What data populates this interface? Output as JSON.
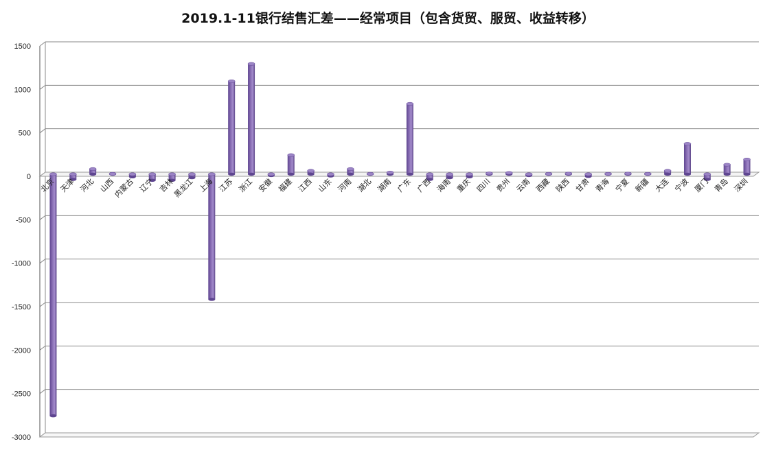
{
  "chart_data": {
    "type": "bar",
    "title": "2019.1-11银行结售汇差——经常项目（包含货贸、服贸、收益转移）",
    "xlabel": "",
    "ylabel": "",
    "ylim": [
      -3000,
      1500
    ],
    "yticks": [
      1500,
      1000,
      500,
      0,
      -500,
      -1000,
      -1500,
      -2000,
      -2500,
      -3000
    ],
    "grid": true,
    "legend": "none",
    "bar_color": "#8a6fb5",
    "categories": [
      "北京",
      "天津",
      "河北",
      "山西",
      "内蒙古",
      "辽宁",
      "吉林",
      "黑龙江",
      "上海",
      "江苏",
      "浙江",
      "安徽",
      "福建",
      "江西",
      "山东",
      "河南",
      "湖北",
      "湖南",
      "广东",
      "广西",
      "海南",
      "重庆",
      "四川",
      "贵州",
      "云南",
      "西藏",
      "陕西",
      "甘肃",
      "青海",
      "宁夏",
      "新疆",
      "大连",
      "宁波",
      "厦门",
      "青岛",
      "深圳"
    ],
    "values": [
      -2780,
      -60,
      60,
      5,
      -30,
      -70,
      -70,
      -40,
      -1440,
      1070,
      1270,
      -15,
      220,
      40,
      -20,
      60,
      5,
      20,
      810,
      -60,
      -40,
      -30,
      10,
      15,
      -15,
      5,
      8,
      -25,
      5,
      8,
      5,
      40,
      350,
      -60,
      110,
      170
    ]
  }
}
